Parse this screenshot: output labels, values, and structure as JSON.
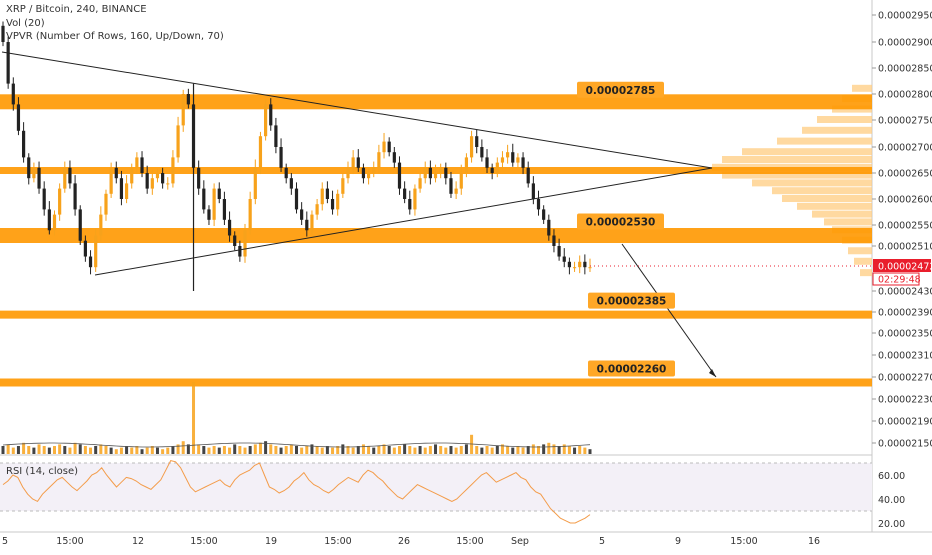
{
  "header": {
    "title": "XRP / Bitcoin, 240, BINANCE",
    "indicator_vol": "Vol (20)",
    "indicator_vpvr": "VPVR (Number Of Rows, 160, Up/Down, 70)"
  },
  "rsi": {
    "label": "RSI (14, close)",
    "ticks": [
      {
        "value": 60,
        "label": "60.00"
      },
      {
        "value": 40,
        "label": "40.00"
      },
      {
        "value": 20,
        "label": "20.00"
      }
    ],
    "series": [
      52,
      55,
      60,
      58,
      50,
      44,
      40,
      38,
      44,
      48,
      52,
      56,
      58,
      54,
      50,
      47,
      51,
      55,
      60,
      62,
      66,
      60,
      55,
      50,
      54,
      58,
      57,
      55,
      52,
      50,
      48,
      52,
      56,
      64,
      72,
      71,
      66,
      58,
      50,
      46,
      48,
      50,
      52,
      54,
      56,
      52,
      50,
      56,
      60,
      62,
      64,
      68,
      70,
      60,
      50,
      48,
      45,
      47,
      50,
      55,
      58,
      62,
      56,
      52,
      50,
      47,
      45,
      48,
      52,
      55,
      58,
      56,
      54,
      60,
      64,
      62,
      58,
      55,
      50,
      46,
      42,
      40,
      44,
      48,
      52,
      50,
      48,
      46,
      44,
      42,
      40,
      38,
      40,
      44,
      48,
      52,
      56,
      60,
      62,
      58,
      54,
      56,
      58,
      60,
      62,
      58,
      56,
      50,
      46,
      44,
      38,
      32,
      28,
      24,
      22,
      20,
      20,
      22,
      24,
      27
    ]
  },
  "price_axis": {
    "ticks": [
      {
        "value": 2.95e-05,
        "label": "0.00002950"
      },
      {
        "value": 2.9e-05,
        "label": "0.00002900"
      },
      {
        "value": 2.85e-05,
        "label": "0.00002850"
      },
      {
        "value": 2.8e-05,
        "label": "0.00002800"
      },
      {
        "value": 2.75e-05,
        "label": "0.00002750"
      },
      {
        "value": 2.7e-05,
        "label": "0.00002700"
      },
      {
        "value": 2.65e-05,
        "label": "0.00002650"
      },
      {
        "value": 2.6e-05,
        "label": "0.00002600"
      },
      {
        "value": 2.55e-05,
        "label": "0.00002550"
      },
      {
        "value": 2.51e-05,
        "label": "0.00002510"
      },
      {
        "value": 2.43e-05,
        "label": "0.00002430"
      },
      {
        "value": 2.39e-05,
        "label": "0.00002390"
      },
      {
        "value": 2.35e-05,
        "label": "0.00002350"
      },
      {
        "value": 2.31e-05,
        "label": "0.00002310"
      },
      {
        "value": 2.27e-05,
        "label": "0.00002270"
      },
      {
        "value": 2.23e-05,
        "label": "0.00002230"
      },
      {
        "value": 2.19e-05,
        "label": "0.00002190"
      },
      {
        "value": 2.15e-05,
        "label": "0.00002150"
      }
    ],
    "current_price": {
      "value": 2.472e-05,
      "label": "0.00002472",
      "countdown": "02:29:48",
      "color": "#e91e2c"
    }
  },
  "time_axis": {
    "labels": [
      "5",
      "15:00",
      "12",
      "15:00",
      "19",
      "15:00",
      "26",
      "15:00",
      "Sep",
      "5",
      "9",
      "15:00",
      "16"
    ]
  },
  "zones": [
    {
      "price": 2.785e-05,
      "label": "0.00002785"
    },
    {
      "price": 2.53e-05,
      "label": "0.00002530"
    },
    {
      "price": 2.385e-05,
      "label": "0.00002385"
    },
    {
      "price": 2.26e-05,
      "label": "0.00002260"
    }
  ],
  "colors": {
    "zone": "#ff9800",
    "zone_label_bg": "#ffa726",
    "candle_up": "#f7a21b",
    "candle_down": "#222222",
    "rsi_line": "#f39c4a",
    "vpvr": "#ffcc80",
    "trendline": "#222222",
    "axis_text": "#333333"
  },
  "chart_data": {
    "type": "candlestick",
    "title": "XRP / Bitcoin, 240, BINANCE",
    "ylim": [
      2.13e-05,
      2.97e-05
    ],
    "close": [
      2.9e-05,
      2.82e-05,
      2.78e-05,
      2.73e-05,
      2.68e-05,
      2.64e-05,
      2.66e-05,
      2.62e-05,
      2.58e-05,
      2.54e-05,
      2.57e-05,
      2.62e-05,
      2.66e-05,
      2.63e-05,
      2.58e-05,
      2.52e-05,
      2.49e-05,
      2.47e-05,
      2.53e-05,
      2.57e-05,
      2.61e-05,
      2.66e-05,
      2.64e-05,
      2.6e-05,
      2.63e-05,
      2.66e-05,
      2.68e-05,
      2.65e-05,
      2.62e-05,
      2.64e-05,
      2.65e-05,
      2.63e-05,
      2.63e-05,
      2.68e-05,
      2.74e-05,
      2.8e-05,
      2.78e-05,
      2.66e-05,
      2.62e-05,
      2.58e-05,
      2.56e-05,
      2.62e-05,
      2.6e-05,
      2.56e-05,
      2.53e-05,
      2.51e-05,
      2.49e-05,
      2.54e-05,
      2.6e-05,
      2.66e-05,
      2.72e-05,
      2.78e-05,
      2.74e-05,
      2.7e-05,
      2.66e-05,
      2.64e-05,
      2.62e-05,
      2.58e-05,
      2.56e-05,
      2.54e-05,
      2.57e-05,
      2.59e-05,
      2.62e-05,
      2.6e-05,
      2.58e-05,
      2.61e-05,
      2.64e-05,
      2.66e-05,
      2.68e-05,
      2.66e-05,
      2.64e-05,
      2.65e-05,
      2.66e-05,
      2.69e-05,
      2.71e-05,
      2.69e-05,
      2.67e-05,
      2.62e-05,
      2.6e-05,
      2.58e-05,
      2.62e-05,
      2.64e-05,
      2.66e-05,
      2.64e-05,
      2.65e-05,
      2.66e-05,
      2.64e-05,
      2.61e-05,
      2.62e-05,
      2.65e-05,
      2.68e-05,
      2.72e-05,
      2.7e-05,
      2.68e-05,
      2.66e-05,
      2.65e-05,
      2.67e-05,
      2.68e-05,
      2.69e-05,
      2.67e-05,
      2.68e-05,
      2.66e-05,
      2.63e-05,
      2.6e-05,
      2.58e-05,
      2.56e-05,
      2.53e-05,
      2.51e-05,
      2.49e-05,
      2.48e-05,
      2.47e-05,
      2.47e-05,
      2.48e-05,
      2.47e-05,
      2.47e-05
    ],
    "volume_rel": [
      0.5,
      0.6,
      0.4,
      0.5,
      0.7,
      0.5,
      0.4,
      0.6,
      0.5,
      0.4,
      0.5,
      0.6,
      0.5,
      0.4,
      0.7,
      0.6,
      0.5,
      0.4,
      0.5,
      0.6,
      0.5,
      0.4,
      0.3,
      0.4,
      0.5,
      0.4,
      0.5,
      0.3,
      0.4,
      0.5,
      0.4,
      0.3,
      0.4,
      0.5,
      0.6,
      0.8,
      0.6,
      4.5,
      0.6,
      0.5,
      0.4,
      0.5,
      0.4,
      0.5,
      0.4,
      0.6,
      0.5,
      0.4,
      0.5,
      0.6,
      0.7,
      0.8,
      0.6,
      0.5,
      0.4,
      0.5,
      0.6,
      0.5,
      0.4,
      0.5,
      0.6,
      0.5,
      0.4,
      0.5,
      0.4,
      0.5,
      0.6,
      0.5,
      0.4,
      0.5,
      0.6,
      0.5,
      0.4,
      0.5,
      0.6,
      0.5,
      0.4,
      0.5,
      0.6,
      0.5,
      0.4,
      0.5,
      0.4,
      0.5,
      0.6,
      0.5,
      0.4,
      0.5,
      0.4,
      0.5,
      0.6,
      1.2,
      0.5,
      0.4,
      0.5,
      0.4,
      0.5,
      0.6,
      0.5,
      0.4,
      0.5,
      0.4,
      0.5,
      0.6,
      0.5,
      0.6,
      0.7,
      0.6,
      0.5,
      0.6,
      0.5,
      0.4,
      0.5,
      0.4,
      0.3
    ]
  }
}
